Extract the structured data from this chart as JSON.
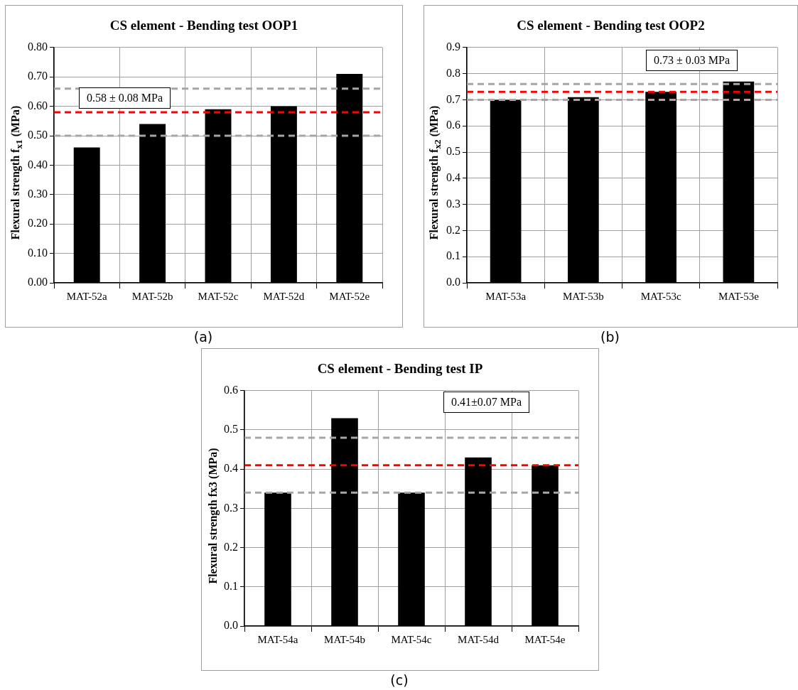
{
  "chart_data": [
    {
      "type": "bar",
      "title": "CS element - Bending test OOP1",
      "ylabel": "Flexural strength f$_{x1}$ (MPa)",
      "categories": [
        "MAT-52a",
        "MAT-52b",
        "MAT-52c",
        "MAT-52d",
        "MAT-52e"
      ],
      "values": [
        0.46,
        0.54,
        0.59,
        0.6,
        0.71
      ],
      "color": "#000000",
      "ylim": [
        0,
        0.8
      ],
      "yticks": [
        {
          "value": 0,
          "label": "0.00"
        },
        {
          "value": 0.1,
          "label": "0.10"
        },
        {
          "value": 0.2,
          "label": "0.20"
        },
        {
          "value": 0.3,
          "label": "0.30"
        },
        {
          "value": 0.4,
          "label": "0.40"
        },
        {
          "value": 0.5,
          "label": "0.50"
        },
        {
          "value": 0.6,
          "label": "0.60"
        },
        {
          "value": 0.7,
          "label": "0.70"
        },
        {
          "value": 0.8,
          "label": "0.80"
        }
      ],
      "grid": true,
      "legend": false,
      "ref_lines": [
        {
          "axis": "y",
          "value": 0.66,
          "color": "#a6a6a6",
          "line_style": "dashed"
        },
        {
          "axis": "y",
          "value": 0.58,
          "color": "#ff0000",
          "line_style": "dashed"
        },
        {
          "axis": "y",
          "value": 0.5,
          "color": "#a6a6a6",
          "line_style": "dashed"
        }
      ],
      "annotations": [
        "0.58 ± 0.08 MPa",
        "(a)"
      ]
    },
    {
      "type": "bar",
      "title": "CS element - Bending test OOP2",
      "ylabel": "Flexural strength f$_{x2}$ (MPa)",
      "categories": [
        "MAT-53a",
        "MAT-53b",
        "MAT-53c",
        "MAT-53e"
      ],
      "values": [
        0.7,
        0.71,
        0.73,
        0.77
      ],
      "color": "#000000",
      "ylim": [
        0,
        0.9
      ],
      "yticks": [
        {
          "value": 0,
          "label": "0.0"
        },
        0.1,
        0.2,
        0.3,
        0.4,
        0.5,
        0.6,
        0.7,
        0.8,
        0.9
      ],
      "grid": true,
      "legend": false,
      "ref_lines": [
        {
          "axis": "y",
          "value": 0.76,
          "color": "#a6a6a6",
          "line_style": "dashed"
        },
        {
          "axis": "y",
          "value": 0.73,
          "color": "#ff0000",
          "line_style": "dashed"
        },
        {
          "axis": "y",
          "value": 0.7,
          "color": "#a6a6a6",
          "line_style": "dashed"
        }
      ],
      "annotations": [
        "0.73 ± 0.03 MPa",
        "(b)"
      ]
    },
    {
      "type": "bar",
      "title": "CS element - Bending test IP",
      "ylabel": "Flexural strength  fx3 (MPa)",
      "categories": [
        "MAT-54a",
        "MAT-54b",
        "MAT-54c",
        "MAT-54d",
        "MAT-54e"
      ],
      "values": [
        0.34,
        0.53,
        0.34,
        0.43,
        0.41
      ],
      "color": "#000000",
      "ylim": [
        0,
        0.6
      ],
      "yticks": [
        {
          "value": 0,
          "label": "0.0"
        },
        0.1,
        0.2,
        0.3,
        0.4,
        0.5,
        0.6
      ],
      "grid": true,
      "legend": false,
      "ref_lines": [
        {
          "axis": "y",
          "value": 0.48,
          "color": "#a6a6a6",
          "line_style": "dashed"
        },
        {
          "axis": "y",
          "value": 0.41,
          "color": "#ff0000",
          "line_style": "dashed"
        },
        {
          "axis": "y",
          "value": 0.34,
          "color": "#a6a6a6",
          "line_style": "dashed"
        }
      ],
      "annotations": [
        "0.41±0.07 MPa",
        "(c)"
      ]
    }
  ]
}
